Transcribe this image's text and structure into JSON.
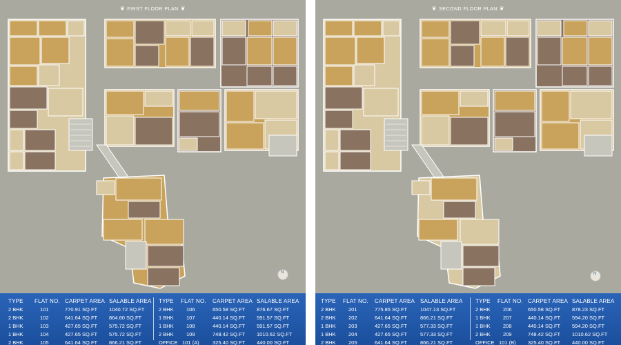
{
  "panels": [
    {
      "title": "FIRST FLOOR PLAN",
      "table": {
        "headers": [
          "TYPE",
          "FLAT NO.",
          "CARPET AREA",
          "SALABLE AREA"
        ],
        "left_rows": [
          [
            "2 BHK",
            "101",
            "770.91 SQ.FT",
            "1040.72 SQ.FT"
          ],
          [
            "2 BHK",
            "102",
            "641.64 SQ.FT",
            "864.60 SQ.FT"
          ],
          [
            "1 BHK",
            "103",
            "427.65 SQ.FT",
            "575.72 SQ.FT"
          ],
          [
            "1 BHK",
            "104",
            "427.65 SQ.FT",
            "575.72 SQ.FT"
          ],
          [
            "2 BHK",
            "105",
            "641.64 SQ.FT",
            "866.21 SQ.FT"
          ]
        ],
        "right_rows": [
          [
            "2 BHK",
            "106",
            "650.58 SQ.FT",
            "876.67 SQ.FT"
          ],
          [
            "1 BHK",
            "107",
            "440.14 SQ.FT",
            "591.57 SQ.FT"
          ],
          [
            "1 BHK",
            "108",
            "440.14 SQ.FT",
            "591.57 SQ.FT"
          ],
          [
            "2 BHK",
            "109",
            "748.42 SQ.FT",
            "1010.62 SQ.FT"
          ],
          [
            "OFFICE",
            "101 (A)",
            "325.40 SQ.FT",
            "440.00 SQ.FT"
          ]
        ]
      }
    },
    {
      "title": "SECOND FLOOR PLAN",
      "table": {
        "headers": [
          "TYPE",
          "FLAT NO.",
          "CARPET AREA",
          "SALABLE AREA"
        ],
        "left_rows": [
          [
            "2 BHK",
            "201",
            "775.85 SQ.FT",
            "1047.13 SQ.FT"
          ],
          [
            "2 BHK",
            "202",
            "641.64 SQ.FT",
            "866.21 SQ.FT"
          ],
          [
            "1 BHK",
            "203",
            "427.65 SQ.FT",
            "577.33 SQ.FT"
          ],
          [
            "1 BHK",
            "204",
            "427.65 SQ.FT",
            "577.33 SQ.FT"
          ],
          [
            "2 BHK",
            "205",
            "641.64 SQ.FT",
            "866.21 SQ.FT"
          ]
        ],
        "right_rows": [
          [
            "2 BHK",
            "206",
            "650.58 SQ.FT",
            "878.23 SQ.FT"
          ],
          [
            "1 BHK",
            "207",
            "440.14 SQ.FT",
            "594.20 SQ.FT"
          ],
          [
            "1 BHK",
            "208",
            "440.14 SQ.FT",
            "594.20 SQ.FT"
          ],
          [
            "2 BHK",
            "209",
            "748.42 SQ.FT",
            "1010.62 SQ.FT"
          ],
          [
            "OFFICE",
            "101 (B)",
            "325.40 SQ.FT",
            "440.00 SQ.FT"
          ]
        ]
      }
    }
  ],
  "compass": {
    "label": "N"
  },
  "colors": {
    "background": "#aaa99f",
    "room_tan": "#c9a35c",
    "room_brown": "#8a7260",
    "room_light": "#d8c9a3",
    "table_blue": "#1f57a8"
  }
}
